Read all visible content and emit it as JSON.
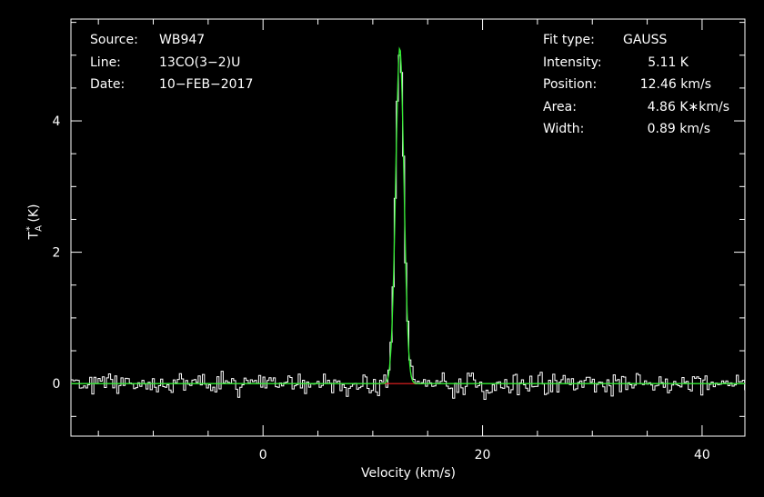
{
  "header": {
    "source_label": "Source:",
    "source_value": "WB947",
    "line_label": "Line:",
    "line_value": "13CO(3−2)U",
    "date_label": "Date:",
    "date_value": "10−FEB−2017"
  },
  "fit": {
    "type_label": "Fit type:",
    "type_value": "GAUSS",
    "intensity_label": "Intensity:",
    "intensity_value": "5.11 K",
    "position_label": "Position:",
    "position_value": "12.46 km/s",
    "area_label": "Area:",
    "area_value": "4.86 K∗km/s",
    "width_label": "Width:",
    "width_value": "0.89 km/s"
  },
  "chart_data": {
    "type": "line",
    "xlabel": "Velocity (km/s)",
    "ylabel_main": "T",
    "ylabel_sub": "A",
    "ylabel_sup": "*",
    "ylabel_unit": " (K)",
    "xlim": [
      -17.5,
      43.9
    ],
    "ylim": [
      -0.8,
      5.55
    ],
    "xticks": [
      0,
      20,
      40
    ],
    "xtick_labels": [
      "0",
      "20",
      "40"
    ],
    "yticks": [
      0,
      2,
      4
    ],
    "ytick_labels": [
      "0",
      "2",
      "4"
    ],
    "colors": {
      "data": "#ffffff",
      "fit": "#33ee33",
      "baseline": "#ee2222",
      "axes": "#ffffff"
    },
    "series": [
      {
        "role": "spectrum",
        "channel_width": 0.19,
        "noise_rms": 0.17,
        "seed": 947
      },
      {
        "role": "gaussian_fit",
        "amplitude": 5.11,
        "center": 12.46,
        "fwhm": 0.89
      },
      {
        "role": "fit_baseline",
        "x": [
          10.2,
          14.6
        ],
        "y": [
          0,
          0
        ]
      }
    ]
  }
}
